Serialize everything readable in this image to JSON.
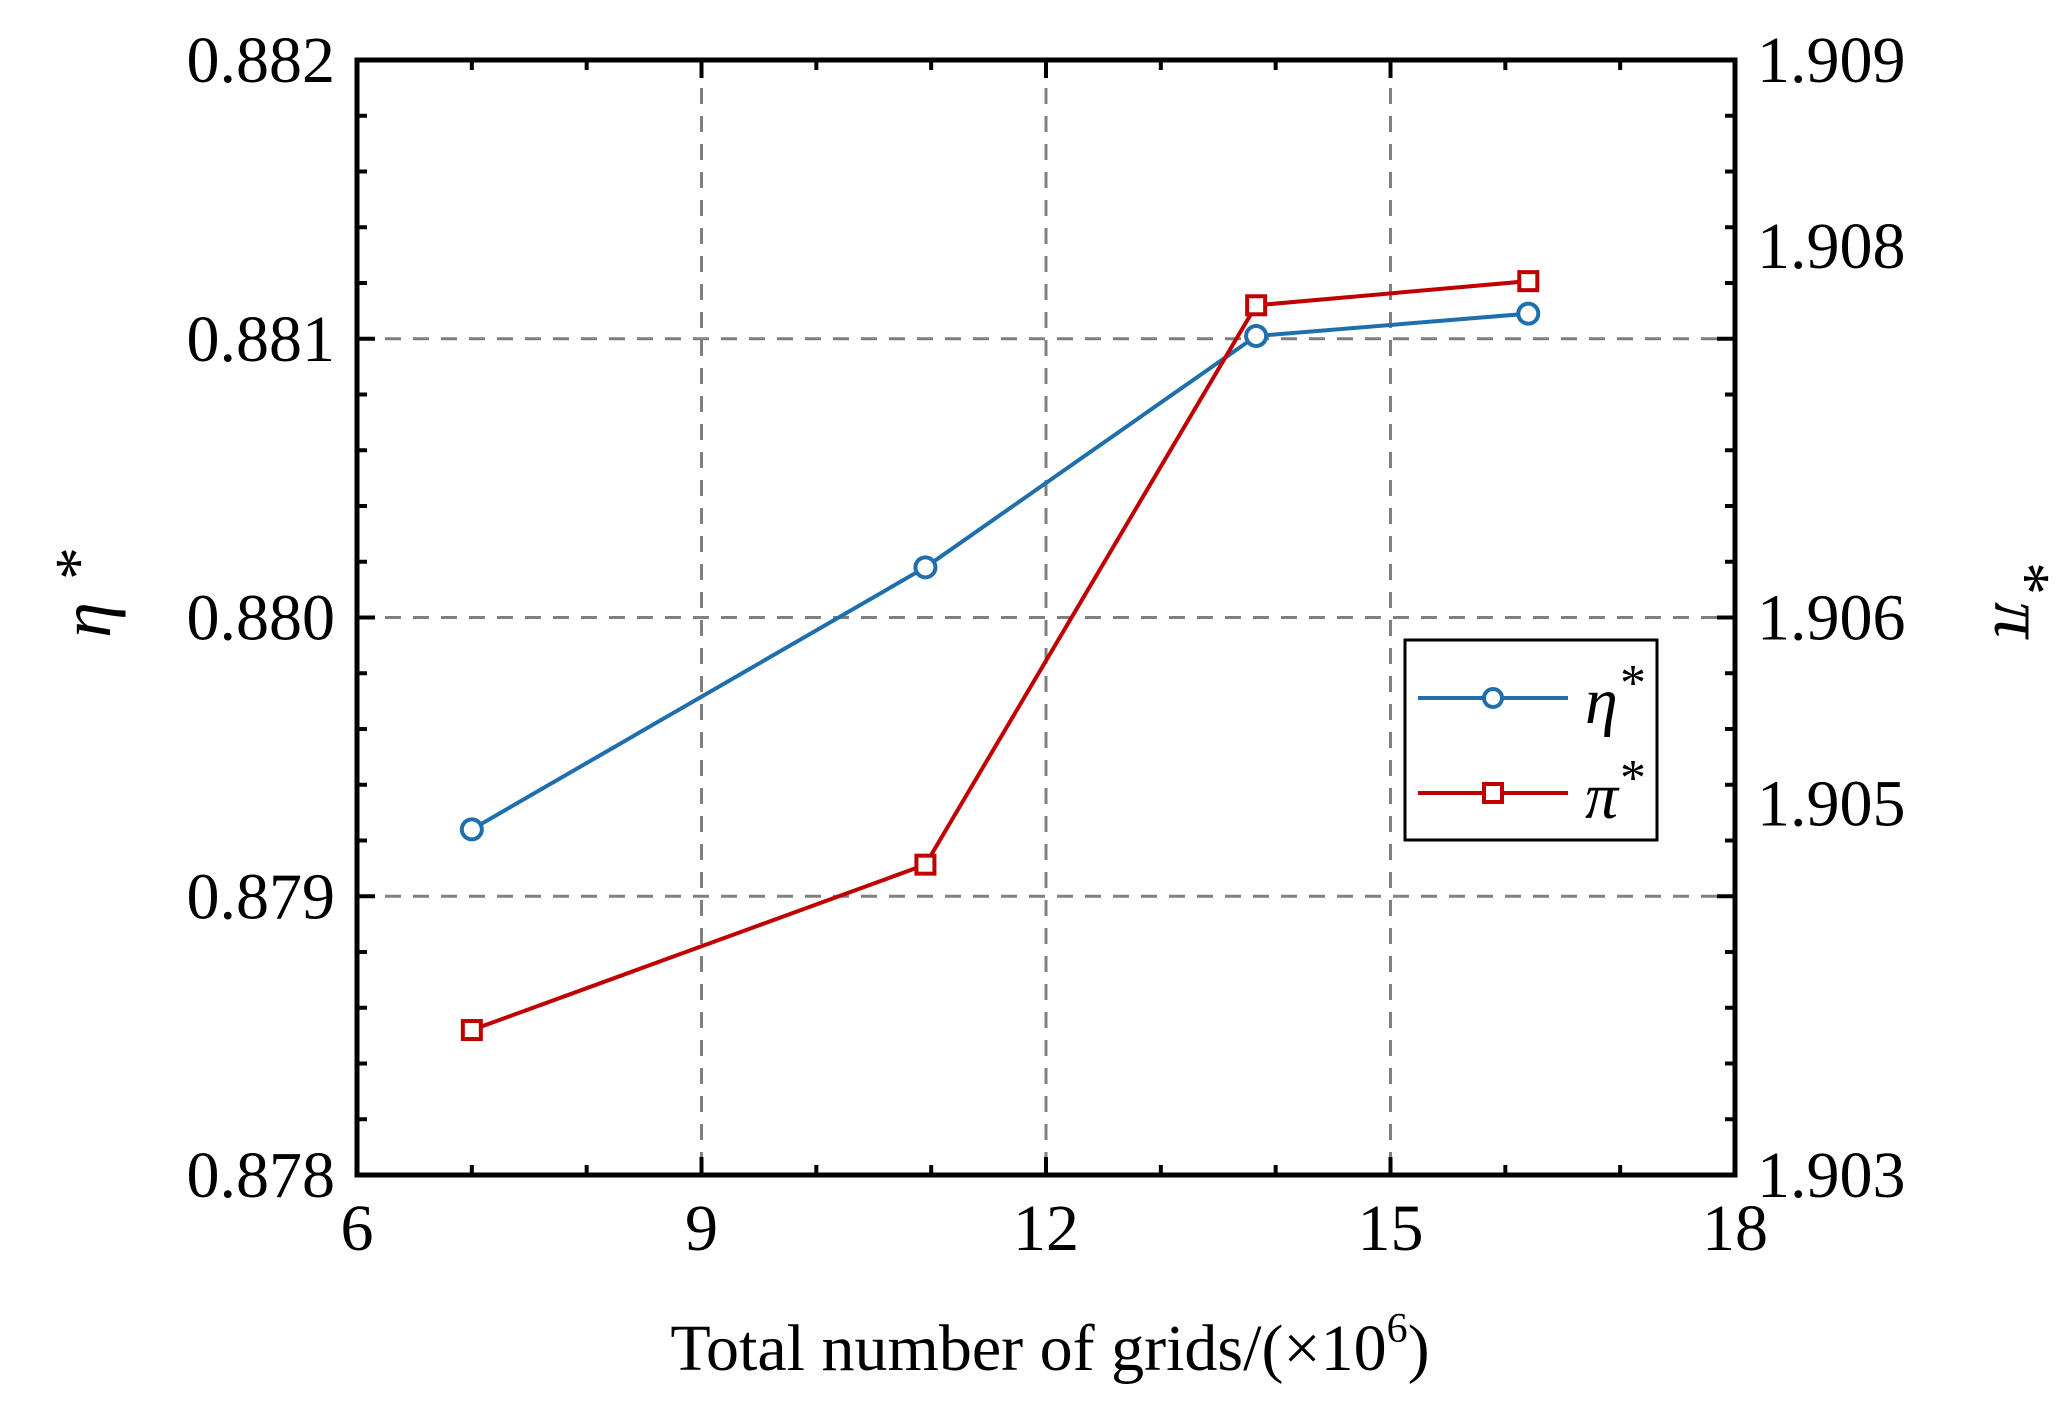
{
  "chart_data": {
    "type": "line",
    "title": "",
    "xlabel": {
      "main": "Total number of grids/(×10",
      "sup": "6",
      "end": ")"
    },
    "ylabel_left": {
      "symbol": "η",
      "sup": "*"
    },
    "ylabel_right": {
      "symbol": "π",
      "sup": "*"
    },
    "xlim": [
      6,
      18
    ],
    "xticks": [
      6,
      9,
      12,
      15,
      18
    ],
    "xtick_labels": [
      "6",
      "9",
      "12",
      "15",
      "18"
    ],
    "ylim_left": [
      0.878,
      0.882
    ],
    "yticks_left": [
      0.878,
      0.879,
      0.88,
      0.881,
      0.882
    ],
    "ytick_labels_left": [
      "0.878",
      "0.879",
      "0.880",
      "0.881",
      "0.882"
    ],
    "ylim_right": [
      1.903,
      1.909
    ],
    "yticks_right": [
      1.903,
      1.905,
      1.906,
      1.908,
      1.909
    ],
    "ytick_labels_right": [
      "1.903",
      "1.905",
      "1.906",
      "1.908",
      "1.909"
    ],
    "grid": true,
    "legend_position": "right",
    "series": [
      {
        "name": "eta",
        "legend_symbol": "η",
        "legend_sup": "*",
        "axis": "left",
        "color": "#1f6fae",
        "marker": "circle",
        "x": [
          7.0,
          10.95,
          13.83,
          16.2
        ],
        "y": [
          0.87924,
          0.88018,
          0.88101,
          0.88109
        ]
      },
      {
        "name": "pi",
        "legend_symbol": "π",
        "legend_sup": "*",
        "axis": "right",
        "color": "#c00000",
        "marker": "square",
        "x": [
          7.0,
          10.95,
          13.83,
          16.2
        ],
        "y": [
          1.90378,
          1.90467,
          1.90768,
          1.90781
        ]
      }
    ]
  }
}
